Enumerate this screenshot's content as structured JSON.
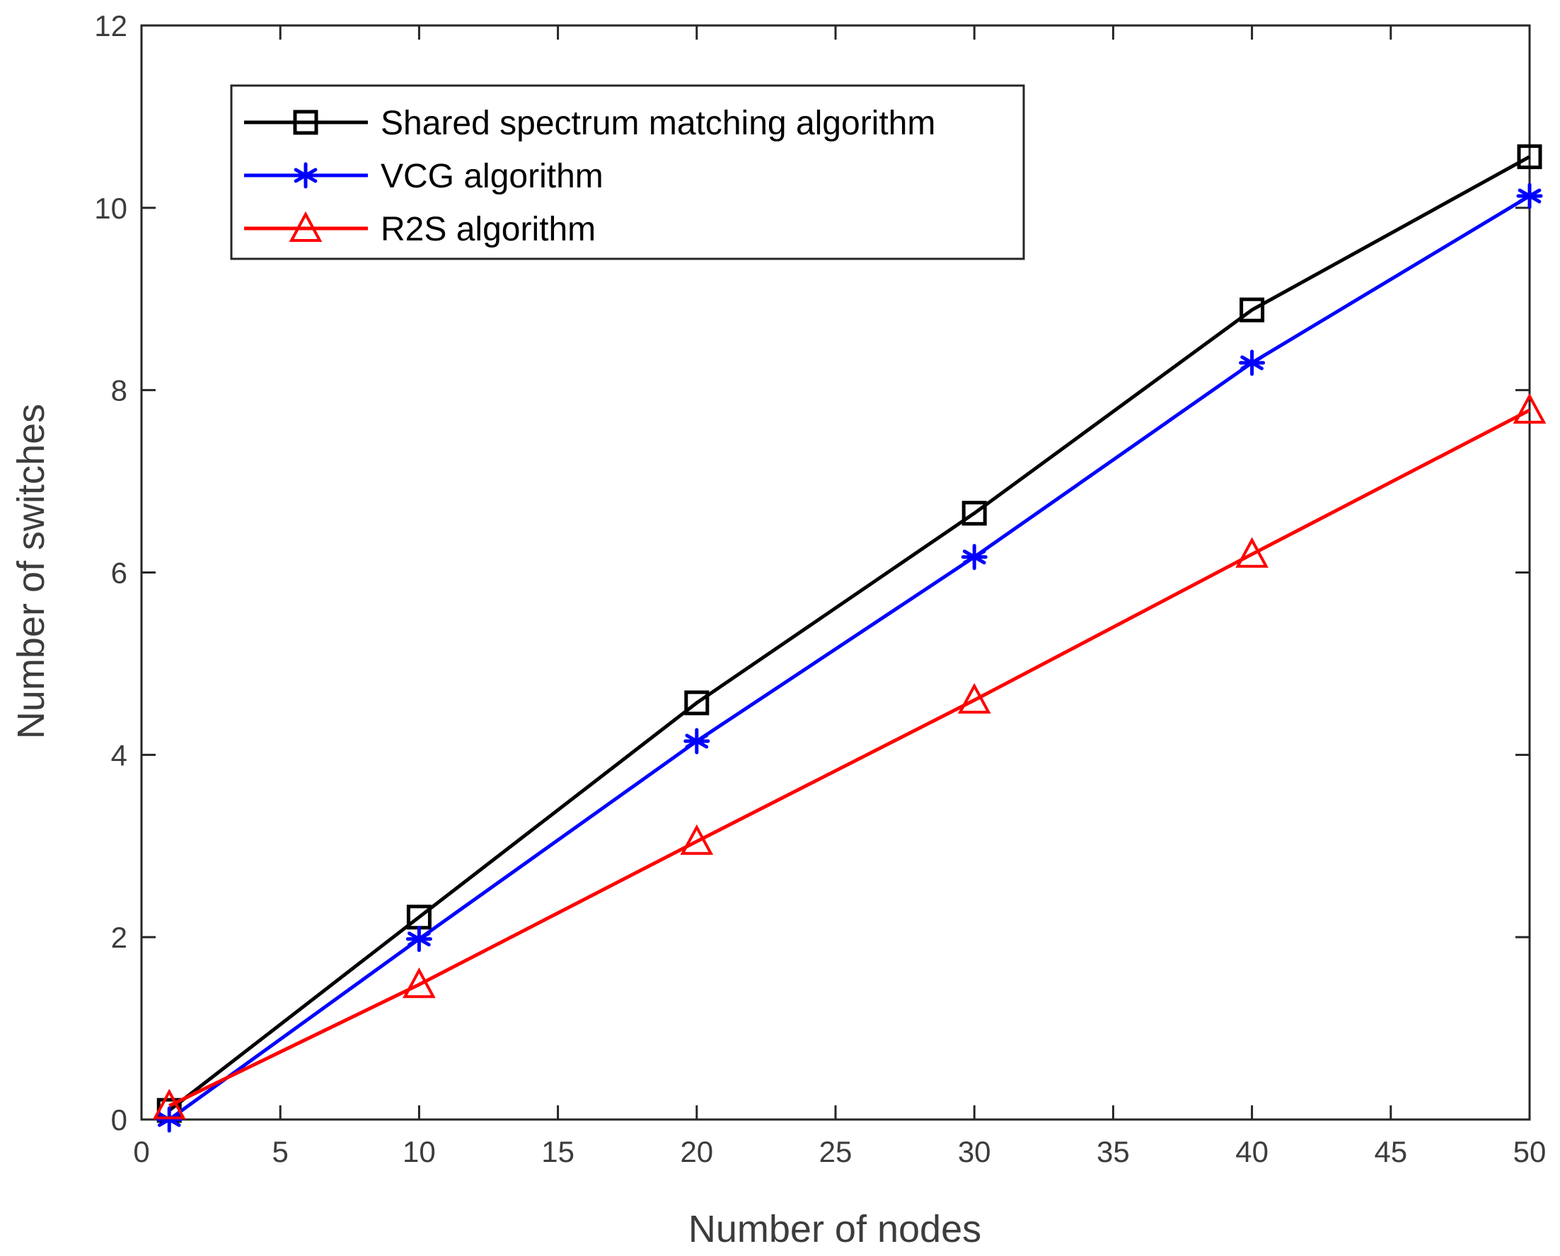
{
  "chart_data": {
    "type": "line",
    "title": "",
    "xlabel": "Number of nodes",
    "ylabel": "Number of switches",
    "xlim": [
      0,
      50
    ],
    "ylim": [
      0,
      12
    ],
    "xticks": [
      0,
      5,
      10,
      15,
      20,
      25,
      30,
      35,
      40,
      45,
      50
    ],
    "yticks": [
      0,
      2,
      4,
      6,
      8,
      10,
      12
    ],
    "grid": false,
    "legend_position": "top-left",
    "x": [
      1,
      10,
      20,
      30,
      40,
      50
    ],
    "series": [
      {
        "name": "Shared spectrum matching algorithm",
        "color": "#000000",
        "marker": "square",
        "values": [
          0.1,
          2.22,
          4.57,
          6.65,
          8.88,
          10.56
        ]
      },
      {
        "name": "VCG algorithm",
        "color": "#0000ff",
        "marker": "asterisk",
        "values": [
          0.0,
          1.98,
          4.15,
          6.17,
          8.3,
          10.13
        ]
      },
      {
        "name": "R2S algorithm",
        "color": "#ff0000",
        "marker": "triangle",
        "values": [
          0.15,
          1.48,
          3.05,
          4.6,
          6.2,
          7.78
        ]
      }
    ]
  }
}
